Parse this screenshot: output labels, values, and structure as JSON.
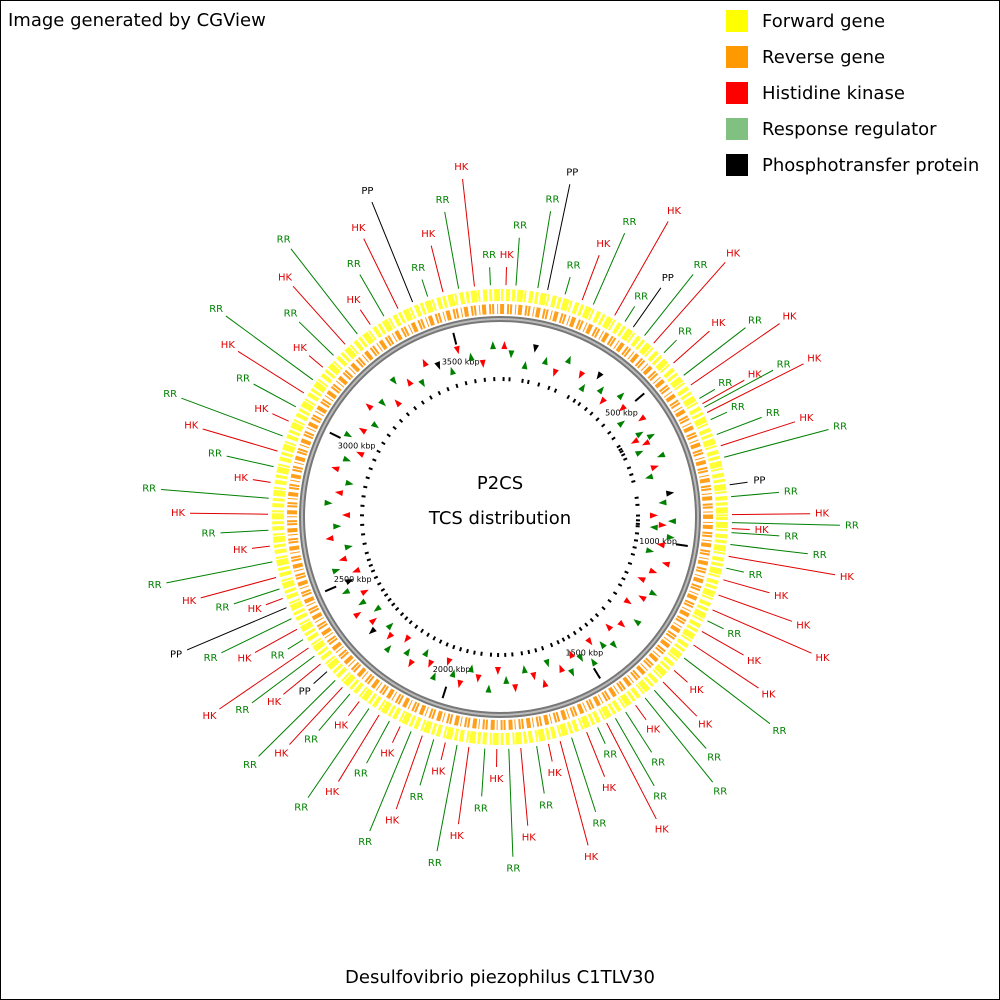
{
  "header": {
    "credit": "Image generated by CGView"
  },
  "legend": [
    {
      "label": "Forward gene",
      "color": "#ffff00"
    },
    {
      "label": "Reverse gene",
      "color": "#ff9900"
    },
    {
      "label": "Histidine kinase",
      "color": "#ff0000"
    },
    {
      "label": "Response regulator",
      "color": "#80c080"
    },
    {
      "label": "Phosphotransfer protein",
      "color": "#000000"
    }
  ],
  "center": {
    "title": "P2CS",
    "subtitle": "TCS distribution"
  },
  "footer": {
    "organism": "Desulfovibrio piezophilus C1TLV30"
  },
  "map": {
    "range": [
      0,
      3644
    ],
    "ticks": [
      {
        "value": 500,
        "label": "500 kbp"
      },
      {
        "value": 1000,
        "label": "1000 kbp"
      },
      {
        "value": 1500,
        "label": "1500 kbp"
      },
      {
        "value": 2000,
        "label": "2000 kbp"
      },
      {
        "value": 2500,
        "label": "2500 kbp"
      },
      {
        "value": 3000,
        "label": "3000 kbp"
      },
      {
        "value": 3500,
        "label": "3500 kbp"
      }
    ],
    "label_colors": {
      "HK": "#e00000",
      "RR": "#008000",
      "PP": "#000000"
    },
    "features": [
      {
        "label": "HK",
        "position": 15
      },
      {
        "label": "RR",
        "position": 40
      },
      {
        "label": "RR",
        "position": 95
      },
      {
        "label": "PP",
        "position": 120
      },
      {
        "label": "RR",
        "position": 165
      },
      {
        "label": "HK",
        "position": 210
      },
      {
        "label": "RR",
        "position": 240
      },
      {
        "label": "HK",
        "position": 300
      },
      {
        "label": "RR",
        "position": 330
      },
      {
        "label": "PP",
        "position": 355
      },
      {
        "label": "RR",
        "position": 390
      },
      {
        "label": "HK",
        "position": 420
      },
      {
        "label": "RR",
        "position": 455
      },
      {
        "label": "HK",
        "position": 490
      },
      {
        "label": "RR",
        "position": 530
      },
      {
        "label": "HK",
        "position": 560
      },
      {
        "label": "RR",
        "position": 600
      },
      {
        "label": "HK",
        "position": 615
      },
      {
        "label": "RR",
        "position": 625
      },
      {
        "label": "HK",
        "position": 640
      },
      {
        "label": "RR",
        "position": 660
      },
      {
        "label": "RR",
        "position": 700
      },
      {
        "label": "HK",
        "position": 730
      },
      {
        "label": "RR",
        "position": 760
      },
      {
        "label": "PP",
        "position": 830
      },
      {
        "label": "RR",
        "position": 860
      },
      {
        "label": "HK",
        "position": 905
      },
      {
        "label": "RR",
        "position": 925
      },
      {
        "label": "HK",
        "position": 940
      },
      {
        "label": "RR",
        "position": 950
      },
      {
        "label": "RR",
        "position": 980
      },
      {
        "label": "HK",
        "position": 1010
      },
      {
        "label": "RR",
        "position": 1040
      },
      {
        "label": "HK",
        "position": 1070
      },
      {
        "label": "HK",
        "position": 1110
      },
      {
        "label": "HK",
        "position": 1150
      },
      {
        "label": "RR",
        "position": 1180
      },
      {
        "label": "HK",
        "position": 1210
      },
      {
        "label": "HK",
        "position": 1250
      },
      {
        "label": "RR",
        "position": 1290
      },
      {
        "label": "HK",
        "position": 1330
      },
      {
        "label": "HK",
        "position": 1370
      },
      {
        "label": "RR",
        "position": 1400
      },
      {
        "label": "RR",
        "position": 1430
      },
      {
        "label": "HK",
        "position": 1460
      },
      {
        "label": "RR",
        "position": 1490
      },
      {
        "label": "RR",
        "position": 1520
      },
      {
        "label": "HK",
        "position": 1545
      },
      {
        "label": "RR",
        "position": 1570
      },
      {
        "label": "HK",
        "position": 1600
      },
      {
        "label": "RR",
        "position": 1640
      },
      {
        "label": "HK",
        "position": 1670
      },
      {
        "label": "HK",
        "position": 1700
      },
      {
        "label": "RR",
        "position": 1730
      },
      {
        "label": "HK",
        "position": 1770
      },
      {
        "label": "RR",
        "position": 1800
      },
      {
        "label": "HK",
        "position": 1830
      },
      {
        "label": "RR",
        "position": 1860
      },
      {
        "label": "HK",
        "position": 1900
      },
      {
        "label": "RR",
        "position": 1930
      },
      {
        "label": "HK",
        "position": 1960
      },
      {
        "label": "RR",
        "position": 1990
      },
      {
        "label": "HK",
        "position": 2020
      },
      {
        "label": "RR",
        "position": 2050
      },
      {
        "label": "HK",
        "position": 2080
      },
      {
        "label": "RR",
        "position": 2110
      },
      {
        "label": "HK",
        "position": 2140
      },
      {
        "label": "RR",
        "position": 2170
      },
      {
        "label": "HK",
        "position": 2200
      },
      {
        "label": "RR",
        "position": 2230
      },
      {
        "label": "HK",
        "position": 2255
      },
      {
        "label": "RR",
        "position": 2280
      },
      {
        "label": "PP",
        "position": 2310
      },
      {
        "label": "HK",
        "position": 2335
      },
      {
        "label": "RR",
        "position": 2360
      },
      {
        "label": "HK",
        "position": 2385
      },
      {
        "label": "RR",
        "position": 2410
      },
      {
        "label": "HK",
        "position": 2440
      },
      {
        "label": "RR",
        "position": 2470
      },
      {
        "label": "PP",
        "position": 2500
      },
      {
        "label": "HK",
        "position": 2525
      },
      {
        "label": "RR",
        "position": 2550
      },
      {
        "label": "HK",
        "position": 2580
      },
      {
        "label": "RR",
        "position": 2620
      },
      {
        "label": "HK",
        "position": 2660
      },
      {
        "label": "RR",
        "position": 2700
      },
      {
        "label": "HK",
        "position": 2740
      },
      {
        "label": "RR",
        "position": 2780
      },
      {
        "label": "HK",
        "position": 2820
      },
      {
        "label": "RR",
        "position": 2860
      },
      {
        "label": "HK",
        "position": 2900
      },
      {
        "label": "RR",
        "position": 2940
      },
      {
        "label": "HK",
        "position": 2980
      },
      {
        "label": "RR",
        "position": 3020
      },
      {
        "label": "HK",
        "position": 3060
      },
      {
        "label": "RR",
        "position": 3100
      },
      {
        "label": "HK",
        "position": 3140
      },
      {
        "label": "RR",
        "position": 3180
      },
      {
        "label": "HK",
        "position": 3220
      },
      {
        "label": "RR",
        "position": 3260
      },
      {
        "label": "HK",
        "position": 3300
      },
      {
        "label": "RR",
        "position": 3340
      },
      {
        "label": "HK",
        "position": 3380
      },
      {
        "label": "PP",
        "position": 3420
      },
      {
        "label": "RR",
        "position": 3460
      },
      {
        "label": "HK",
        "position": 3500
      },
      {
        "label": "RR",
        "position": 3540
      },
      {
        "label": "HK",
        "position": 3580
      },
      {
        "label": "RR",
        "position": 3620
      }
    ]
  }
}
